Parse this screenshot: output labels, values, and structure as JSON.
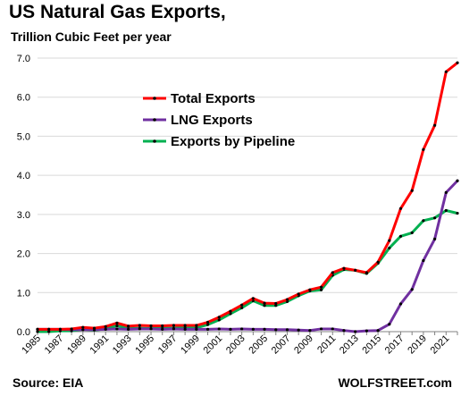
{
  "chart_data": {
    "type": "line",
    "title": "US Natural Gas Exports,",
    "subtitle": "Trillion Cubic Feet per year",
    "source": "Source: EIA",
    "credit": "WOLFSTREET.com",
    "ylim": [
      0,
      7
    ],
    "yticks": [
      "0.0",
      "1.0",
      "2.0",
      "3.0",
      "4.0",
      "5.0",
      "6.0",
      "7.0"
    ],
    "grid": "horizontal",
    "legend_position": "upper-left",
    "x": [
      1985,
      1986,
      1987,
      1988,
      1989,
      1990,
      1991,
      1992,
      1993,
      1994,
      1995,
      1996,
      1997,
      1998,
      1999,
      2000,
      2001,
      2002,
      2003,
      2004,
      2005,
      2006,
      2007,
      2008,
      2009,
      2010,
      2011,
      2012,
      2013,
      2014,
      2015,
      2016,
      2017,
      2018,
      2019,
      2020,
      2021,
      2022
    ],
    "xtick_labels": [
      "1985",
      "1987",
      "1989",
      "1991",
      "1993",
      "1995",
      "1997",
      "1999",
      "2001",
      "2003",
      "2005",
      "2007",
      "2009",
      "2011",
      "2013",
      "2015",
      "2017",
      "2019",
      "2021"
    ],
    "series": [
      {
        "name": "Total Exports",
        "color": "#ff0000",
        "values": [
          0.06,
          0.06,
          0.06,
          0.07,
          0.11,
          0.09,
          0.13,
          0.22,
          0.14,
          0.16,
          0.15,
          0.15,
          0.16,
          0.16,
          0.16,
          0.24,
          0.37,
          0.52,
          0.68,
          0.85,
          0.73,
          0.72,
          0.82,
          0.96,
          1.07,
          1.14,
          1.51,
          1.62,
          1.57,
          1.51,
          1.78,
          2.33,
          3.15,
          3.61,
          4.66,
          5.28,
          6.65,
          6.88
        ]
      },
      {
        "name": "LNG Exports",
        "color": "#7030a0",
        "values": [
          0.06,
          0.06,
          0.06,
          0.05,
          0.05,
          0.05,
          0.06,
          0.07,
          0.06,
          0.07,
          0.07,
          0.06,
          0.07,
          0.06,
          0.06,
          0.06,
          0.07,
          0.06,
          0.07,
          0.06,
          0.06,
          0.05,
          0.05,
          0.04,
          0.03,
          0.07,
          0.07,
          0.03,
          0.0,
          0.02,
          0.03,
          0.19,
          0.71,
          1.08,
          1.82,
          2.37,
          3.56,
          3.86
        ]
      },
      {
        "name": "Exports by Pipeline",
        "color": "#00b050",
        "values": [
          0.0,
          0.0,
          0.02,
          0.02,
          0.06,
          0.04,
          0.07,
          0.15,
          0.08,
          0.09,
          0.08,
          0.09,
          0.09,
          0.1,
          0.1,
          0.18,
          0.3,
          0.46,
          0.61,
          0.79,
          0.67,
          0.67,
          0.77,
          0.92,
          1.04,
          1.07,
          1.44,
          1.59,
          1.57,
          1.49,
          1.75,
          2.14,
          2.44,
          2.53,
          2.84,
          2.91,
          3.1,
          3.03
        ]
      }
    ]
  }
}
